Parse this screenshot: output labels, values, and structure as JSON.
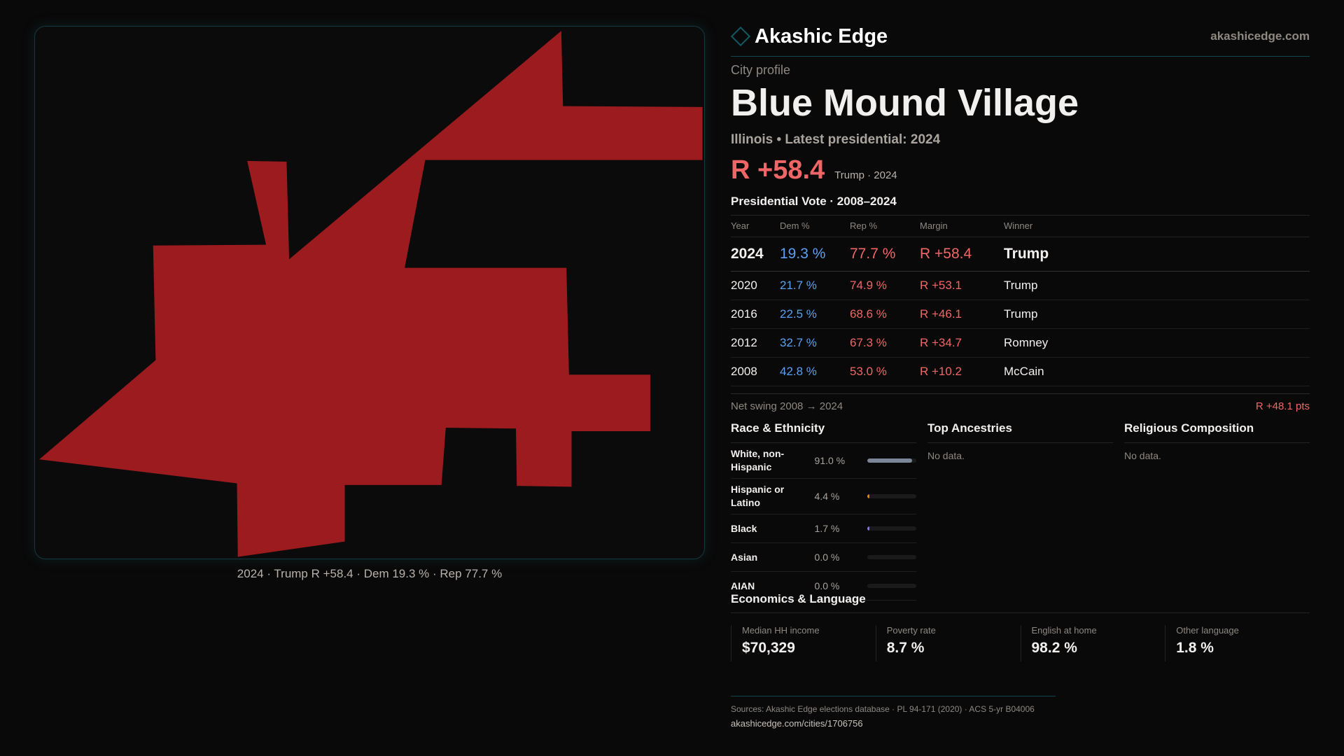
{
  "brand": {
    "name": "Akashic Edge",
    "site": "akashicedge.com"
  },
  "profile": {
    "kicker": "City profile",
    "title": "Blue Mound Village",
    "subtitle": "Illinois • Latest presidential: 2024",
    "margin": "R +58.4",
    "margin_note": "Trump · 2024"
  },
  "map": {
    "caption": "2024 · Trump R +58.4 · Dem 19.3 % · Rep 77.7 %",
    "fill_color": "#9b1b1e"
  },
  "vote": {
    "heading": "Presidential Vote · 2008–2024",
    "columns": [
      "Year",
      "Dem %",
      "Rep %",
      "Margin",
      "Winner"
    ],
    "rows": [
      {
        "year": "2024",
        "dem": "19.3 %",
        "rep": "77.7 %",
        "margin": "R +58.4",
        "winner": "Trump"
      },
      {
        "year": "2020",
        "dem": "21.7 %",
        "rep": "74.9 %",
        "margin": "R +53.1",
        "winner": "Trump"
      },
      {
        "year": "2016",
        "dem": "22.5 %",
        "rep": "68.6 %",
        "margin": "R +46.1",
        "winner": "Trump"
      },
      {
        "year": "2012",
        "dem": "32.7 %",
        "rep": "67.3 %",
        "margin": "R +34.7",
        "winner": "Romney"
      },
      {
        "year": "2008",
        "dem": "42.8 %",
        "rep": "53.0 %",
        "margin": "R +10.2",
        "winner": "McCain"
      }
    ],
    "swing_label": "Net swing 2008 → 2024",
    "swing_value": "R +48.1 pts"
  },
  "race": {
    "heading": "Race & Ethnicity",
    "rows": [
      {
        "label": "White, non-Hispanic",
        "pct": "91.0 %",
        "value": 91.0,
        "color": "#7b8799"
      },
      {
        "label": "Hispanic or Latino",
        "pct": "4.4 %",
        "value": 4.4,
        "color": "#d98a12"
      },
      {
        "label": "Black",
        "pct": "1.7 %",
        "value": 1.7,
        "color": "#8a74e0"
      },
      {
        "label": "Asian",
        "pct": "0.0 %",
        "value": 0,
        "color": "#5aa0f2"
      },
      {
        "label": "AIAN",
        "pct": "0.0 %",
        "value": 0,
        "color": "#5aa0f2"
      }
    ]
  },
  "ancestries": {
    "heading": "Top Ancestries",
    "empty": "No data."
  },
  "religion": {
    "heading": "Religious Composition",
    "empty": "No data."
  },
  "economics": {
    "heading": "Economics & Language",
    "stats": [
      {
        "label": "Median HH income",
        "value": "$70,329"
      },
      {
        "label": "Poverty rate",
        "value": "8.7 %"
      },
      {
        "label": "English at home",
        "value": "98.2 %"
      },
      {
        "label": "Other language",
        "value": "1.8 %"
      }
    ]
  },
  "footer": {
    "sources": "Sources: Akashic Edge elections database · PL 94-171 (2020) · ACS 5-yr B04006",
    "url": "akashicedge.com/cities/1706756"
  }
}
